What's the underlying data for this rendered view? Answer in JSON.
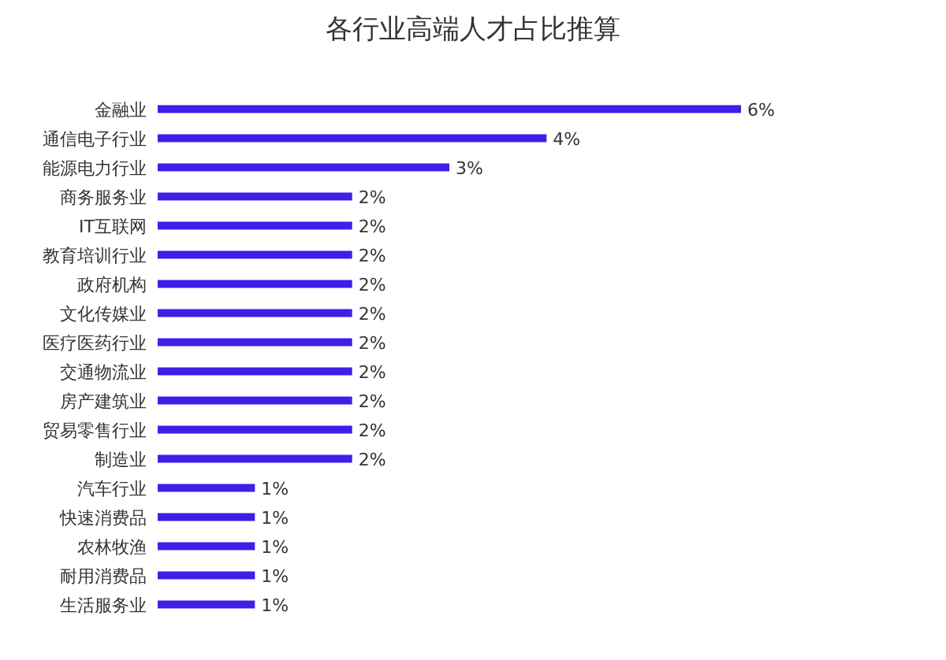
{
  "chart_data": {
    "type": "bar",
    "orientation": "horizontal",
    "title": "各行业高端人才占比推算",
    "categories": [
      "金融业",
      "通信电子行业",
      "能源电力行业",
      "商务服务业",
      "IT互联网",
      "教育培训行业",
      "政府机构",
      "文化传媒业",
      "医疗医药行业",
      "交通物流业",
      "房产建筑业",
      "贸易零售行业",
      "制造业",
      "汽车行业",
      "快速消费品",
      "农林牧渔",
      "耐用消费品",
      "生活服务业"
    ],
    "values": [
      6,
      4,
      3,
      2,
      2,
      2,
      2,
      2,
      2,
      2,
      2,
      2,
      2,
      1,
      1,
      1,
      1,
      1
    ],
    "value_labels": [
      "6%",
      "4%",
      "3%",
      "2%",
      "2%",
      "2%",
      "2%",
      "2%",
      "2%",
      "2%",
      "2%",
      "2%",
      "2%",
      "1%",
      "1%",
      "1%",
      "1%",
      "1%"
    ],
    "color": "#3d1fe8"
  }
}
